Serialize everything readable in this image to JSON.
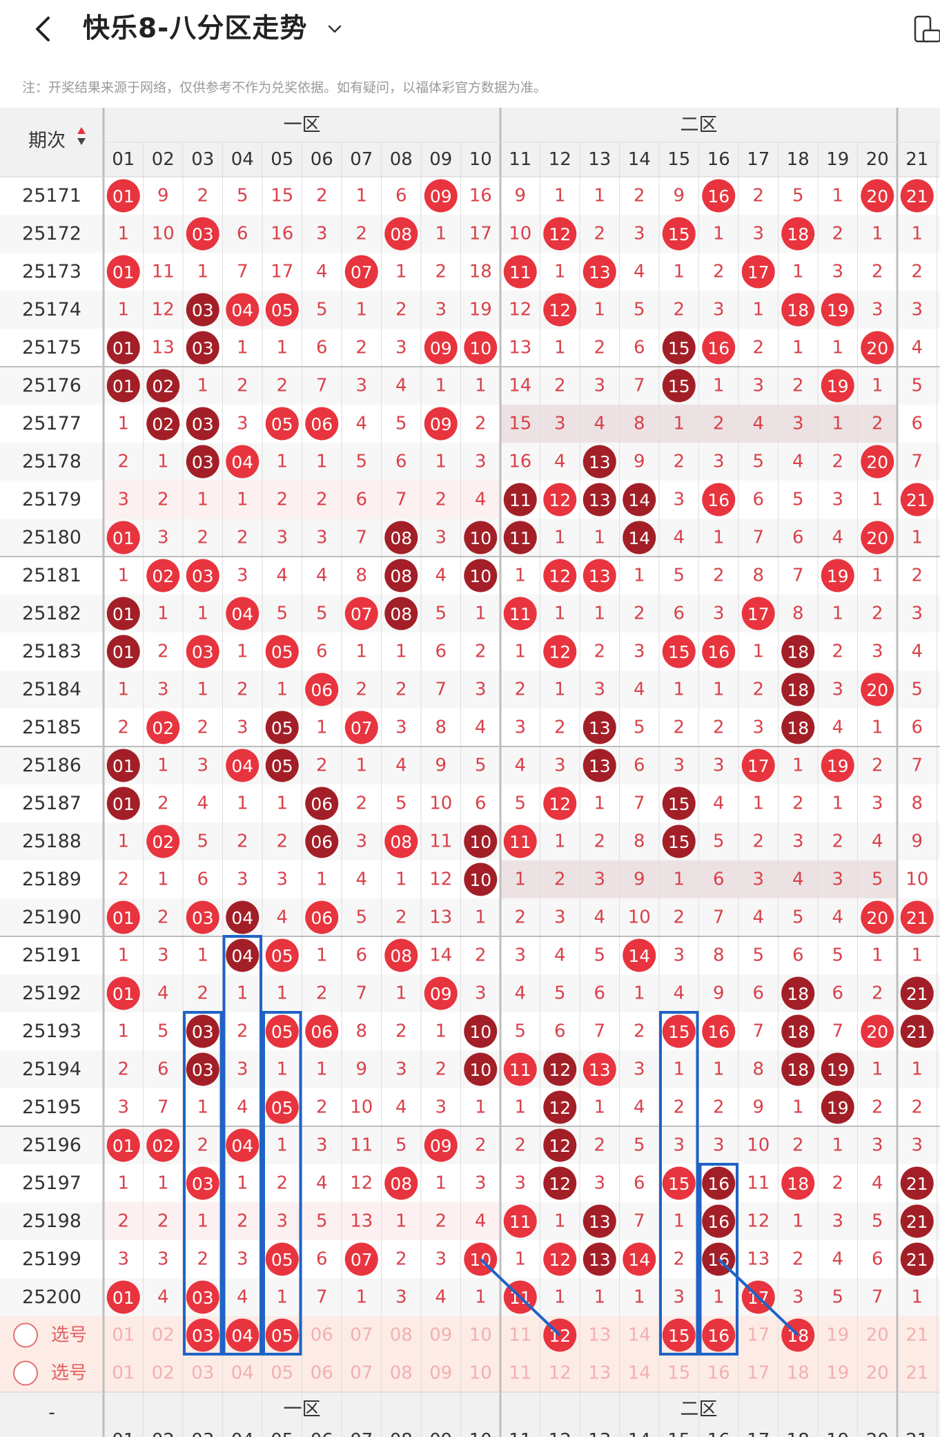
{
  "header": {
    "title": "快乐8-八分区走势",
    "back_icon": "chevron-left-icon",
    "dropdown_icon": "chevron-down-icon",
    "right_icon": "device-toggle-icon"
  },
  "note": "注：开奖结果来源于网络，仅供参考不作为兑奖依据。如有疑问，以福体彩官方数据为准。",
  "table": {
    "period_header": "期次",
    "sort_icon": "sort-updown-icon",
    "zones": [
      "一区",
      "二区"
    ],
    "columns": [
      "01",
      "02",
      "03",
      "04",
      "05",
      "06",
      "07",
      "08",
      "09",
      "10",
      "11",
      "12",
      "13",
      "14",
      "15",
      "16",
      "17",
      "18",
      "19",
      "20",
      "21"
    ],
    "rows": [
      {
        "period": "25171",
        "cells": [
          "01",
          "9",
          "2",
          "5",
          "15",
          "2",
          "1",
          "6",
          "09",
          "16",
          "9",
          "1",
          "1",
          "2",
          "9",
          "16",
          "2",
          "5",
          "1",
          "20",
          "21"
        ]
      },
      {
        "period": "25172",
        "cells": [
          "1",
          "10",
          "03",
          "6",
          "16",
          "3",
          "2",
          "08",
          "1",
          "17",
          "10",
          "12",
          "2",
          "3",
          "15",
          "1",
          "3",
          "18",
          "2",
          "1",
          "1"
        ]
      },
      {
        "period": "25173",
        "cells": [
          "01",
          "11",
          "1",
          "7",
          "17",
          "4",
          "07",
          "1",
          "2",
          "18",
          "11",
          "1",
          "13",
          "4",
          "1",
          "2",
          "17",
          "1",
          "3",
          "2",
          "2"
        ]
      },
      {
        "period": "25174",
        "cells": [
          "1",
          "12",
          "03",
          "04",
          "05",
          "5",
          "1",
          "2",
          "3",
          "19",
          "12",
          "12",
          "1",
          "5",
          "2",
          "3",
          "1",
          "18",
          "19",
          "3",
          "3"
        ]
      },
      {
        "period": "25175",
        "cells": [
          "01",
          "13",
          "03",
          "1",
          "1",
          "6",
          "2",
          "3",
          "09",
          "10",
          "13",
          "1",
          "2",
          "6",
          "15",
          "16",
          "2",
          "1",
          "1",
          "20",
          "4"
        ]
      },
      {
        "period": "25176",
        "cells": [
          "01",
          "02",
          "1",
          "2",
          "2",
          "7",
          "3",
          "4",
          "1",
          "1",
          "14",
          "2",
          "3",
          "7",
          "15",
          "1",
          "3",
          "2",
          "19",
          "1",
          "5"
        ]
      },
      {
        "period": "25177",
        "cells": [
          "1",
          "02",
          "03",
          "3",
          "05",
          "06",
          "4",
          "5",
          "09",
          "2",
          "15",
          "3",
          "4",
          "8",
          "1",
          "2",
          "4",
          "3",
          "1",
          "2",
          "6"
        ]
      },
      {
        "period": "25178",
        "cells": [
          "2",
          "1",
          "03",
          "04",
          "1",
          "1",
          "5",
          "6",
          "1",
          "3",
          "16",
          "4",
          "13",
          "9",
          "2",
          "3",
          "5",
          "4",
          "2",
          "20",
          "7"
        ]
      },
      {
        "period": "25179",
        "cells": [
          "3",
          "2",
          "1",
          "1",
          "2",
          "2",
          "6",
          "7",
          "2",
          "4",
          "11",
          "12",
          "13",
          "14",
          "3",
          "16",
          "6",
          "5",
          "3",
          "1",
          "21"
        ]
      },
      {
        "period": "25180",
        "cells": [
          "01",
          "3",
          "2",
          "2",
          "3",
          "3",
          "7",
          "08",
          "3",
          "10",
          "11",
          "1",
          "1",
          "14",
          "4",
          "1",
          "7",
          "6",
          "4",
          "20",
          "1"
        ]
      },
      {
        "period": "25181",
        "cells": [
          "1",
          "02",
          "03",
          "3",
          "4",
          "4",
          "8",
          "08",
          "4",
          "10",
          "1",
          "12",
          "13",
          "1",
          "5",
          "2",
          "8",
          "7",
          "19",
          "1",
          "2"
        ]
      },
      {
        "period": "25182",
        "cells": [
          "01",
          "1",
          "1",
          "04",
          "5",
          "5",
          "07",
          "08",
          "5",
          "1",
          "11",
          "1",
          "1",
          "2",
          "6",
          "3",
          "17",
          "8",
          "1",
          "2",
          "3"
        ]
      },
      {
        "period": "25183",
        "cells": [
          "01",
          "2",
          "03",
          "1",
          "05",
          "6",
          "1",
          "1",
          "6",
          "2",
          "1",
          "12",
          "2",
          "3",
          "15",
          "16",
          "1",
          "18",
          "2",
          "3",
          "4"
        ]
      },
      {
        "period": "25184",
        "cells": [
          "1",
          "3",
          "1",
          "2",
          "1",
          "06",
          "2",
          "2",
          "7",
          "3",
          "2",
          "1",
          "3",
          "4",
          "1",
          "1",
          "2",
          "18",
          "3",
          "20",
          "5"
        ]
      },
      {
        "period": "25185",
        "cells": [
          "2",
          "02",
          "2",
          "3",
          "05",
          "1",
          "07",
          "3",
          "8",
          "4",
          "3",
          "2",
          "13",
          "5",
          "2",
          "2",
          "3",
          "18",
          "4",
          "1",
          "6"
        ]
      },
      {
        "period": "25186",
        "cells": [
          "01",
          "1",
          "3",
          "04",
          "05",
          "2",
          "1",
          "4",
          "9",
          "5",
          "4",
          "3",
          "13",
          "6",
          "3",
          "3",
          "17",
          "1",
          "19",
          "2",
          "7"
        ]
      },
      {
        "period": "25187",
        "cells": [
          "01",
          "2",
          "4",
          "1",
          "1",
          "06",
          "2",
          "5",
          "10",
          "6",
          "5",
          "12",
          "1",
          "7",
          "15",
          "4",
          "1",
          "2",
          "1",
          "3",
          "8"
        ]
      },
      {
        "period": "25188",
        "cells": [
          "1",
          "02",
          "5",
          "2",
          "2",
          "06",
          "3",
          "08",
          "11",
          "10",
          "11",
          "1",
          "2",
          "8",
          "15",
          "5",
          "2",
          "3",
          "2",
          "4",
          "9"
        ]
      },
      {
        "period": "25189",
        "cells": [
          "2",
          "1",
          "6",
          "3",
          "3",
          "1",
          "4",
          "1",
          "12",
          "10",
          "1",
          "2",
          "3",
          "9",
          "1",
          "6",
          "3",
          "4",
          "3",
          "5",
          "10"
        ]
      },
      {
        "period": "25190",
        "cells": [
          "01",
          "2",
          "03",
          "04",
          "4",
          "06",
          "5",
          "2",
          "13",
          "1",
          "2",
          "3",
          "4",
          "10",
          "2",
          "7",
          "4",
          "5",
          "4",
          "20",
          "21"
        ]
      },
      {
        "period": "25191",
        "cells": [
          "1",
          "3",
          "1",
          "04",
          "05",
          "1",
          "6",
          "08",
          "14",
          "2",
          "3",
          "4",
          "5",
          "14",
          "3",
          "8",
          "5",
          "6",
          "5",
          "1",
          "1"
        ]
      },
      {
        "period": "25192",
        "cells": [
          "01",
          "4",
          "2",
          "1",
          "1",
          "2",
          "7",
          "1",
          "09",
          "3",
          "4",
          "5",
          "6",
          "1",
          "4",
          "9",
          "6",
          "18",
          "6",
          "2",
          "21"
        ]
      },
      {
        "period": "25193",
        "cells": [
          "1",
          "5",
          "03",
          "2",
          "05",
          "06",
          "8",
          "2",
          "1",
          "10",
          "5",
          "6",
          "7",
          "2",
          "15",
          "16",
          "7",
          "18",
          "7",
          "20",
          "21"
        ]
      },
      {
        "period": "25194",
        "cells": [
          "2",
          "6",
          "03",
          "3",
          "1",
          "1",
          "9",
          "3",
          "2",
          "10",
          "11",
          "12",
          "13",
          "3",
          "1",
          "1",
          "8",
          "18",
          "19",
          "1",
          "1"
        ]
      },
      {
        "period": "25195",
        "cells": [
          "3",
          "7",
          "1",
          "4",
          "05",
          "2",
          "10",
          "4",
          "3",
          "1",
          "1",
          "12",
          "1",
          "4",
          "2",
          "2",
          "9",
          "1",
          "19",
          "2",
          "2"
        ]
      },
      {
        "period": "25196",
        "cells": [
          "01",
          "02",
          "2",
          "04",
          "1",
          "3",
          "11",
          "5",
          "09",
          "2",
          "2",
          "12",
          "2",
          "5",
          "3",
          "3",
          "10",
          "2",
          "1",
          "3",
          "3"
        ]
      },
      {
        "period": "25197",
        "cells": [
          "1",
          "1",
          "03",
          "1",
          "2",
          "4",
          "12",
          "08",
          "1",
          "3",
          "3",
          "12",
          "3",
          "6",
          "15",
          "16",
          "11",
          "18",
          "2",
          "4",
          "21"
        ]
      },
      {
        "period": "25198",
        "cells": [
          "2",
          "2",
          "1",
          "2",
          "3",
          "5",
          "13",
          "1",
          "2",
          "4",
          "11",
          "1",
          "13",
          "7",
          "1",
          "16",
          "12",
          "1",
          "3",
          "5",
          "21"
        ]
      },
      {
        "period": "25199",
        "cells": [
          "3",
          "3",
          "2",
          "3",
          "05",
          "6",
          "07",
          "2",
          "3",
          "10",
          "1",
          "12",
          "13",
          "14",
          "2",
          "16",
          "13",
          "2",
          "4",
          "6",
          "21"
        ]
      },
      {
        "period": "25200",
        "cells": [
          "01",
          "4",
          "03",
          "4",
          "1",
          "7",
          "1",
          "3",
          "4",
          "1",
          "11",
          "1",
          "1",
          "1",
          "3",
          "1",
          "17",
          "3",
          "5",
          "7",
          "1"
        ]
      }
    ],
    "select_rows": [
      {
        "label": "选号",
        "icon": "radio-circle-icon",
        "cells": [
          "01",
          "02",
          "03",
          "04",
          "05",
          "06",
          "07",
          "08",
          "09",
          "10",
          "11",
          "12",
          "13",
          "14",
          "15",
          "16",
          "17",
          "18",
          "19",
          "20",
          "21"
        ]
      },
      {
        "label": "选号",
        "icon": "radio-circle-icon",
        "cells": [
          "01",
          "02",
          "03",
          "04",
          "05",
          "06",
          "07",
          "08",
          "09",
          "10",
          "11",
          "12",
          "13",
          "14",
          "15",
          "16",
          "17",
          "18",
          "19",
          "20",
          "21"
        ]
      }
    ],
    "footer_left": "-",
    "colors": {
      "ball": "#e8343e",
      "ball_repeat": "#a31f27",
      "miss_text": "#d9414a",
      "header_bg": "#f1f1f1",
      "highlight_bg": "#ede2e3",
      "select_bg": "#fdebe6",
      "box": "#1f63c6"
    }
  }
}
